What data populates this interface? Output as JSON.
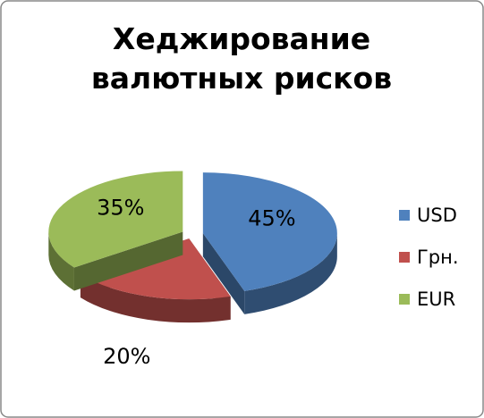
{
  "chart_data": {
    "type": "pie",
    "title": "Хеджирование валютных рисков",
    "categories": [
      "USD",
      "Грн.",
      "EUR"
    ],
    "values": [
      45,
      20,
      35
    ],
    "value_labels": [
      "45%",
      "20%",
      "35%"
    ],
    "colors": [
      "#4f81bd",
      "#c0504d",
      "#9bbb59"
    ],
    "legend": "right"
  }
}
